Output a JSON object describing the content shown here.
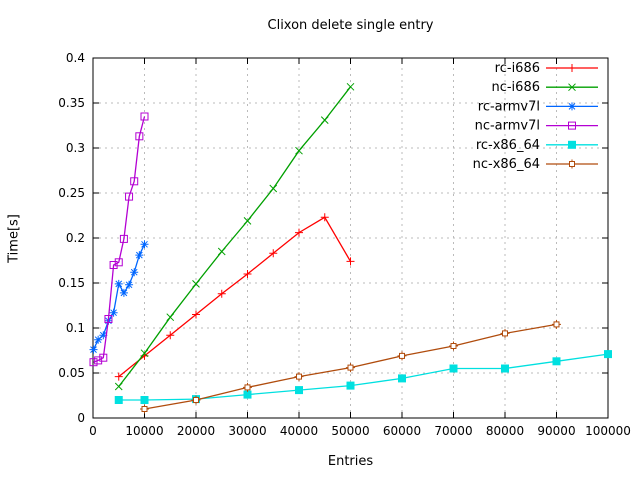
{
  "title": "Clixon delete single entry",
  "axes": {
    "x_label": "Entries",
    "y_label": "Time[s]"
  },
  "chart_data": {
    "type": "line",
    "title": "Clixon delete single entry",
    "xlabel": "Entries",
    "ylabel": "Time[s]",
    "xlim": [
      0,
      100000
    ],
    "ylim": [
      0,
      0.4
    ],
    "grid": true,
    "legend_position": "top-right-inside",
    "x_ticks": [
      0,
      10000,
      20000,
      30000,
      40000,
      50000,
      60000,
      70000,
      80000,
      90000,
      100000
    ],
    "x_tick_labels": [
      "0",
      "10000",
      "20000",
      "30000",
      "40000",
      "50000",
      "60000",
      "70000",
      "80000",
      "90000",
      "100000"
    ],
    "y_ticks": [
      0,
      0.05,
      0.1,
      0.15,
      0.2,
      0.25,
      0.3,
      0.35,
      0.4
    ],
    "y_tick_labels": [
      "0",
      "0.05",
      "0.1",
      "0.15",
      "0.2",
      "0.25",
      "0.3",
      "0.35",
      "0.4"
    ],
    "grid_color": "#bbbbbb",
    "axis_color": "#000000",
    "series": [
      {
        "name": "rc-i686",
        "color": "#ff0000",
        "marker": "plus",
        "x": [
          5000,
          10000,
          15000,
          20000,
          25000,
          30000,
          35000,
          40000,
          45000,
          50000
        ],
        "y": [
          0.046,
          0.069,
          0.092,
          0.115,
          0.138,
          0.16,
          0.183,
          0.206,
          0.223,
          0.174
        ]
      },
      {
        "name": "nc-i686",
        "color": "#00a000",
        "marker": "cross",
        "x": [
          5000,
          10000,
          15000,
          20000,
          25000,
          30000,
          35000,
          40000,
          45000,
          50000
        ],
        "y": [
          0.035,
          0.072,
          0.112,
          0.149,
          0.185,
          0.219,
          0.255,
          0.297,
          0.331,
          0.368
        ]
      },
      {
        "name": "rc-armv7l",
        "color": "#0066ff",
        "marker": "asterisk",
        "x": [
          100,
          1000,
          2000,
          3000,
          4000,
          5000,
          6000,
          7000,
          8000,
          9000,
          10000
        ],
        "y": [
          0.076,
          0.087,
          0.092,
          0.108,
          0.117,
          0.149,
          0.139,
          0.148,
          0.162,
          0.181,
          0.193
        ]
      },
      {
        "name": "nc-armv7l",
        "color": "#b400d3",
        "marker": "square-open",
        "x": [
          100,
          1000,
          2000,
          3000,
          4000,
          5000,
          6000,
          7000,
          8000,
          9000,
          10000
        ],
        "y": [
          0.062,
          0.064,
          0.067,
          0.11,
          0.17,
          0.173,
          0.199,
          0.246,
          0.263,
          0.313,
          0.335
        ]
      },
      {
        "name": "rc-x86_64",
        "color": "#00e0e0",
        "marker": "square-filled",
        "x": [
          5000,
          10000,
          20000,
          30000,
          40000,
          50000,
          60000,
          70000,
          80000,
          90000,
          100000
        ],
        "y": [
          0.02,
          0.02,
          0.021,
          0.026,
          0.031,
          0.036,
          0.044,
          0.055,
          0.055,
          0.063,
          0.071
        ]
      },
      {
        "name": "nc-x86_64",
        "color": "#b04c0d",
        "marker": "square-plus",
        "x": [
          10000,
          20000,
          30000,
          40000,
          50000,
          60000,
          70000,
          80000,
          90000
        ],
        "y": [
          0.01,
          0.02,
          0.034,
          0.046,
          0.056,
          0.069,
          0.08,
          0.094,
          0.104
        ]
      }
    ]
  }
}
